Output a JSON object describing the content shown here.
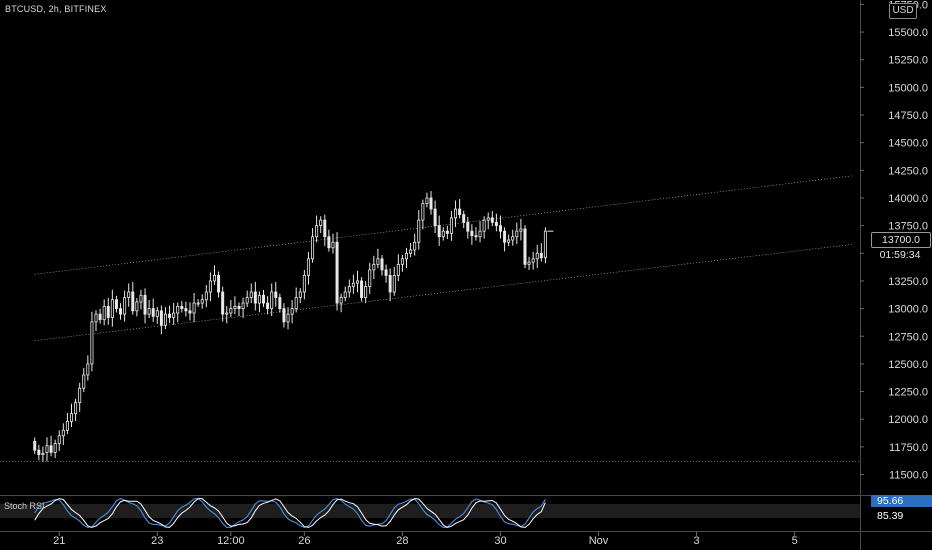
{
  "header": {
    "symbol_line": "BTCUSD, 2h, BITFINEX",
    "currency": "USD"
  },
  "indicator": {
    "name": "Stoch RSI",
    "k_value": "95.66",
    "d_value": "85.39"
  },
  "price_box": {
    "price": "13700.0",
    "countdown": "01:59:34"
  },
  "colors": {
    "background": "#000000",
    "candle": "#e8e8e8",
    "text": "#d9d9d9",
    "rsi_k": "#4a90e2",
    "rsi_d": "#ffffff"
  },
  "chart_data": {
    "type": "candlestick",
    "title": "",
    "y_ticks": [
      11500,
      11750,
      12000,
      12250,
      12500,
      12750,
      13000,
      13250,
      13500,
      13750,
      14000,
      14250,
      14500,
      14750,
      15000,
      15250,
      15500,
      15750
    ],
    "y_tick_labels": [
      "11500.0",
      "11750.0",
      "12000.0",
      "12250.0",
      "12500.0",
      "12750.0",
      "13000.0",
      "13250.0",
      "13500.0",
      "13750.0",
      "14000.0",
      "14250.0",
      "14500.0",
      "14750.0",
      "15000.0",
      "15250.0",
      "15500.0",
      "15750.0"
    ],
    "ylim": [
      11360,
      15790
    ],
    "x_tick_labels": [
      "21",
      "23",
      "12:00",
      "26",
      "28",
      "30",
      "Nov",
      "3",
      "5"
    ],
    "x_tick_index": [
      6,
      30,
      48,
      66,
      90,
      114,
      138,
      162,
      186
    ],
    "xlim_index": [
      -8.5,
      202
    ],
    "closes": [
      11720,
      11680,
      11690,
      11760,
      11700,
      11780,
      11850,
      11900,
      11980,
      12050,
      12150,
      12280,
      12400,
      12500,
      12880,
      12950,
      12900,
      13020,
      12920,
      13080,
      13000,
      12950,
      13100,
      13150,
      12980,
      13060,
      13120,
      12950,
      13000,
      12930,
      12980,
      12850,
      12950,
      12920,
      12960,
      13020,
      13000,
      12980,
      12960,
      13050,
      13050,
      13080,
      13150,
      13250,
      13300,
      13150,
      12950,
      12960,
      13000,
      13020,
      13000,
      13050,
      13100,
      13150,
      13050,
      13120,
      13050,
      13000,
      13150,
      13100,
      13000,
      12880,
      12950,
      13000,
      13100,
      13150,
      13300,
      13450,
      13650,
      13750,
      13800,
      13650,
      13550,
      13600,
      13050,
      13100,
      13150,
      13200,
      13230,
      13250,
      13100,
      13200,
      13350,
      13400,
      13450,
      13350,
      13300,
      13150,
      13300,
      13400,
      13450,
      13500,
      13530,
      13600,
      13800,
      13950,
      14000,
      13900,
      13750,
      13650,
      13700,
      13680,
      13820,
      13900,
      13850,
      13780,
      13700,
      13660,
      13650,
      13700,
      13800,
      13820,
      13780,
      13750,
      13700,
      13600,
      13620,
      13650,
      13700,
      13720,
      13400,
      13420,
      13450,
      13500,
      13460,
      13700
    ],
    "opens": [
      11800,
      11720,
      11680,
      11700,
      11760,
      11700,
      11780,
      11850,
      11900,
      11980,
      12050,
      12150,
      12280,
      12400,
      12500,
      12880,
      12950,
      12900,
      13020,
      12920,
      13080,
      13000,
      12950,
      13100,
      13150,
      12980,
      13060,
      13120,
      12950,
      13000,
      12930,
      12980,
      12850,
      12950,
      12920,
      12960,
      13020,
      13000,
      12980,
      12960,
      13050,
      13050,
      13080,
      13150,
      13250,
      13300,
      13150,
      12950,
      12960,
      13000,
      13020,
      13000,
      13050,
      13100,
      13150,
      13050,
      13120,
      13050,
      13000,
      13150,
      13100,
      13000,
      12880,
      12950,
      13000,
      13100,
      13150,
      13300,
      13450,
      13650,
      13750,
      13800,
      13650,
      13550,
      13600,
      13050,
      13100,
      13150,
      13200,
      13230,
      13250,
      13100,
      13200,
      13350,
      13400,
      13450,
      13350,
      13300,
      13150,
      13300,
      13400,
      13450,
      13500,
      13530,
      13600,
      13800,
      13950,
      14000,
      13900,
      13750,
      13650,
      13700,
      13680,
      13820,
      13900,
      13850,
      13780,
      13700,
      13660,
      13650,
      13700,
      13800,
      13820,
      13780,
      13750,
      13700,
      13600,
      13620,
      13650,
      13700,
      13720,
      13400,
      13420,
      13450,
      13500,
      13460
    ],
    "channel": {
      "upper": [
        [
          0,
          13310
        ],
        [
          200,
          14200
        ]
      ],
      "lower": [
        [
          0,
          12710
        ],
        [
          200,
          13580
        ]
      ]
    },
    "stoch_rsi": {
      "k_last": 95.66,
      "d_last": 85.39
    }
  }
}
